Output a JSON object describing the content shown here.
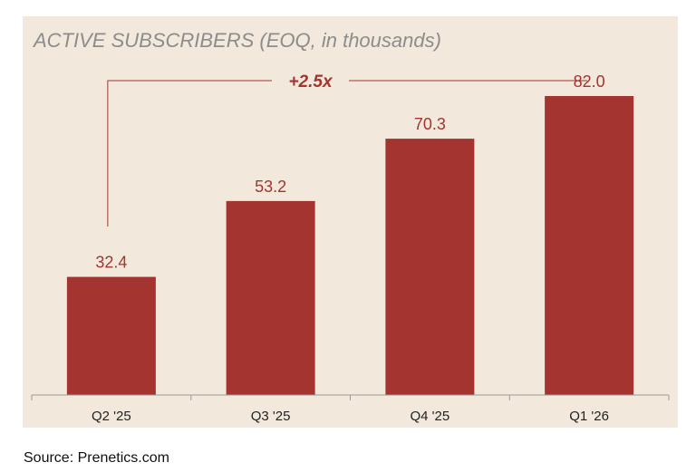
{
  "title": "ACTIVE SUBSCRIBERS (EOQ, in thousands)",
  "source": "Source: Prenetics.com",
  "annotation": {
    "label": "+2.5x",
    "from_category": "Q2 '25",
    "to_category": "Q1 '26"
  },
  "colors": {
    "bar": "#a33430",
    "panel": "#f2e9dc",
    "label": "#a33430",
    "axis": "#9a9a9a",
    "title": "#8c8c8c"
  },
  "chart_data": {
    "type": "bar",
    "title": "ACTIVE SUBSCRIBERS (EOQ, in thousands)",
    "categories": [
      "Q2 '25",
      "Q3 '25",
      "Q4 '25",
      "Q1 '26"
    ],
    "values": [
      32.4,
      53.2,
      70.3,
      82.0
    ],
    "value_labels": [
      "32.4",
      "53.2",
      "70.3",
      "82.0"
    ],
    "xlabel": "",
    "ylabel": "",
    "ylim": [
      0,
      82.0
    ],
    "grid": false,
    "legend": "none"
  }
}
